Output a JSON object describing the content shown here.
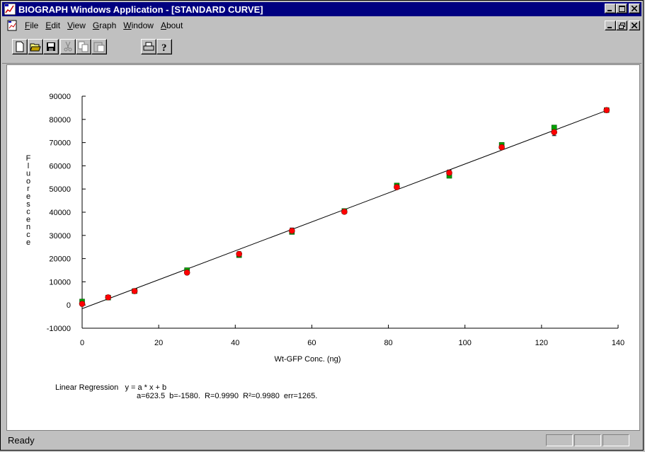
{
  "window": {
    "title": "BIOGRAPH Windows Application - [STANDARD CURVE]"
  },
  "menu": {
    "items": [
      "File",
      "Edit",
      "View",
      "Graph",
      "Window",
      "About"
    ]
  },
  "toolbar": {
    "icons": [
      "new-icon",
      "open-icon",
      "save-icon",
      "cut-icon",
      "copy-icon",
      "paste-icon",
      "print-icon",
      "help-icon"
    ]
  },
  "chart_data": {
    "type": "scatter",
    "title": "",
    "xlabel": "Wt-GFP Conc. (ng)",
    "ylabel": "Fluorescence",
    "xlim": [
      0,
      140
    ],
    "ylim": [
      -10000,
      90000
    ],
    "xticks": [
      "0",
      "20",
      "40",
      "60",
      "80",
      "100",
      "120",
      "140"
    ],
    "yticks": [
      "-10000",
      "0",
      "10000",
      "20000",
      "30000",
      "40000",
      "50000",
      "60000",
      "70000",
      "80000",
      "90000"
    ],
    "grid": false,
    "series": [
      {
        "marker": "green-square",
        "color": "#00a000",
        "points": [
          [
            0,
            1500
          ],
          [
            6.8,
            3200
          ],
          [
            13.7,
            6000
          ],
          [
            27.4,
            15000
          ],
          [
            41,
            21500
          ],
          [
            54.8,
            31500
          ],
          [
            68.5,
            40500
          ],
          [
            82.2,
            51500
          ],
          [
            95.9,
            55700
          ],
          [
            109.6,
            69000
          ],
          [
            123.3,
            76500
          ],
          [
            137,
            84000
          ]
        ]
      },
      {
        "marker": "red-circle",
        "color": "#ff0000",
        "points": [
          [
            0,
            500
          ],
          [
            6.8,
            3300
          ],
          [
            13.7,
            6000
          ],
          [
            27.4,
            14000
          ],
          [
            41,
            22000
          ],
          [
            54.8,
            32000
          ],
          [
            68.5,
            40200
          ],
          [
            82.2,
            50800
          ],
          [
            95.9,
            57000
          ],
          [
            109.6,
            68000
          ],
          [
            123.3,
            74500
          ],
          [
            137,
            84000
          ]
        ]
      }
    ],
    "error_bars": [
      [
        0,
        0,
        2000
      ],
      [
        27.4,
        13500,
        15500
      ],
      [
        41,
        20800,
        23000
      ],
      [
        54.8,
        31000,
        33200
      ],
      [
        82.2,
        50000,
        52000
      ],
      [
        95.9,
        55500,
        58200
      ],
      [
        109.6,
        67500,
        69800
      ],
      [
        123.3,
        73000,
        77000
      ]
    ],
    "regression_line": {
      "a": 623.5,
      "b": -1580,
      "x_range": [
        0,
        137
      ]
    },
    "regression_text": {
      "label": "Linear Regression",
      "equation": "y = a * x + b",
      "params": "a=623.5  b=-1580.  R=0.9990  R²=0.9980  err=1265."
    }
  },
  "status": {
    "text": "Ready"
  }
}
